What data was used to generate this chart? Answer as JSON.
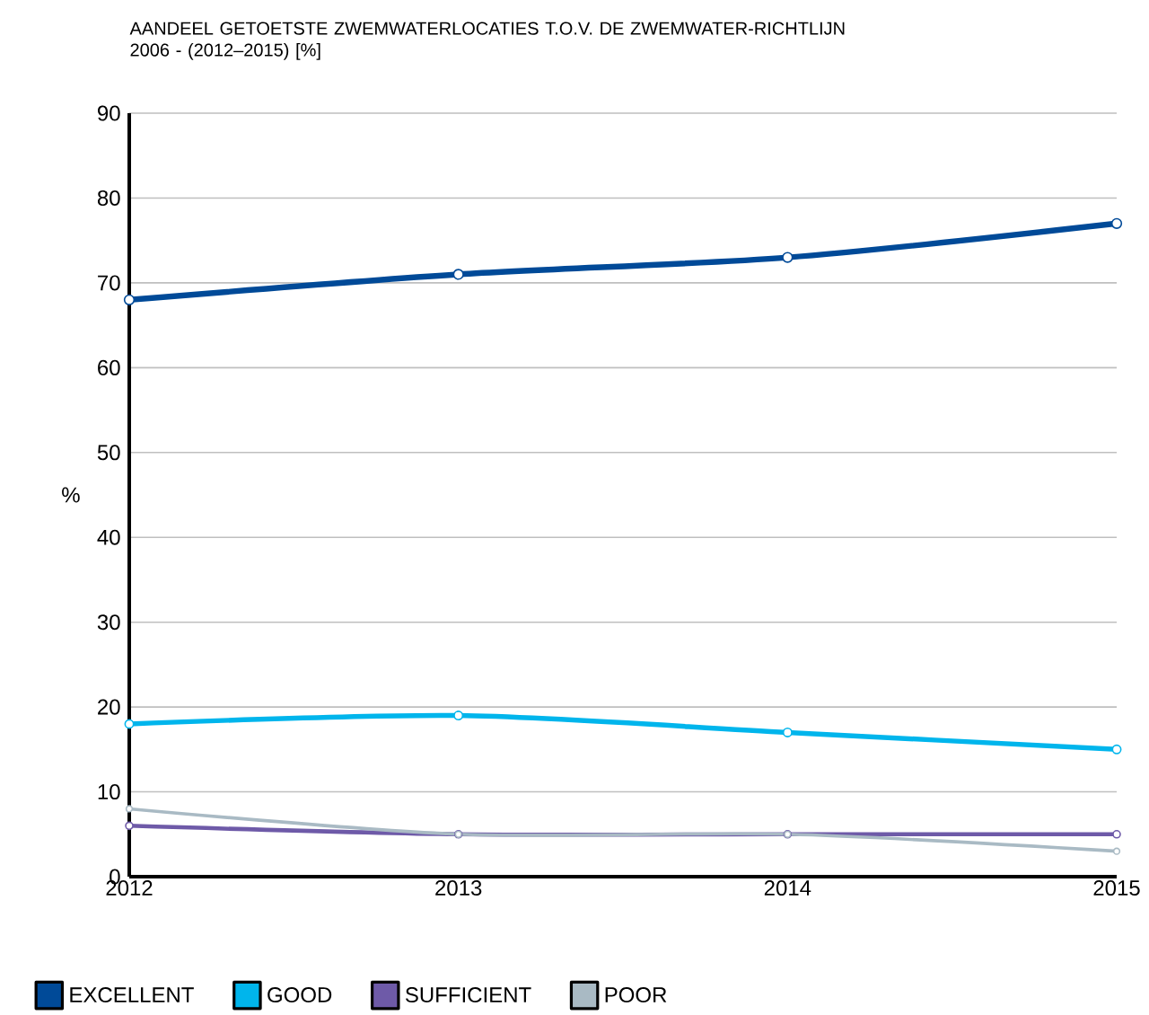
{
  "chart_data": {
    "type": "line",
    "title": "AANDEEL GETOETSTE ZWEMWATERLOCATIES T.O.V. DE ZWEMWATER-RICHTLIJN 2006 - (2012–2015) [%]",
    "ylabel": "%",
    "categories": [
      "2012",
      "2013",
      "2014",
      "2015"
    ],
    "series": [
      {
        "name": "EXCELLENT",
        "color": "#004a98",
        "values": [
          68,
          71,
          73,
          77
        ]
      },
      {
        "name": "GOOD",
        "color": "#00b5ec",
        "values": [
          18,
          19,
          17,
          15
        ]
      },
      {
        "name": "SUFFICIENT",
        "color": "#6e5aa8",
        "values": [
          6,
          5,
          5,
          5
        ]
      },
      {
        "name": "POOR",
        "color": "#a9bac4",
        "values": [
          8,
          5,
          5,
          3
        ]
      }
    ],
    "ylim": [
      0,
      90
    ],
    "yticks": [
      0,
      10,
      20,
      30,
      40,
      50,
      60,
      70,
      80,
      90
    ],
    "grid": "y",
    "legend": "bottom",
    "marker": "circle",
    "line_style": "solid"
  }
}
